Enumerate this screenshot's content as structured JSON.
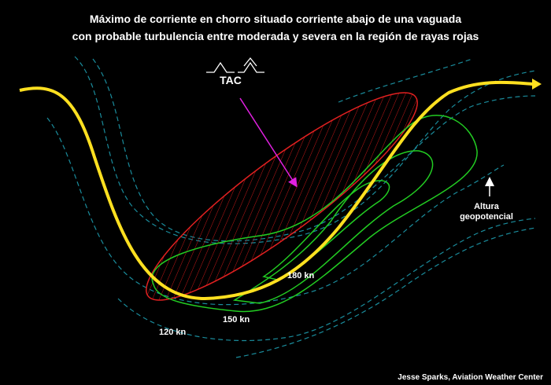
{
  "title": {
    "line1": "Máximo de corriente en chorro situado corriente abajo de una vaguada",
    "line2": "con probable turbulencia entre moderada y severa en la región de rayas rojas"
  },
  "labels": {
    "tac": "TAC",
    "isotachs": [
      "120 kn",
      "150 kn",
      "180 kn"
    ],
    "height": [
      "Altura",
      "geopotencial"
    ]
  },
  "credit": "Jesse Sparks, Aviation Weather Center"
}
